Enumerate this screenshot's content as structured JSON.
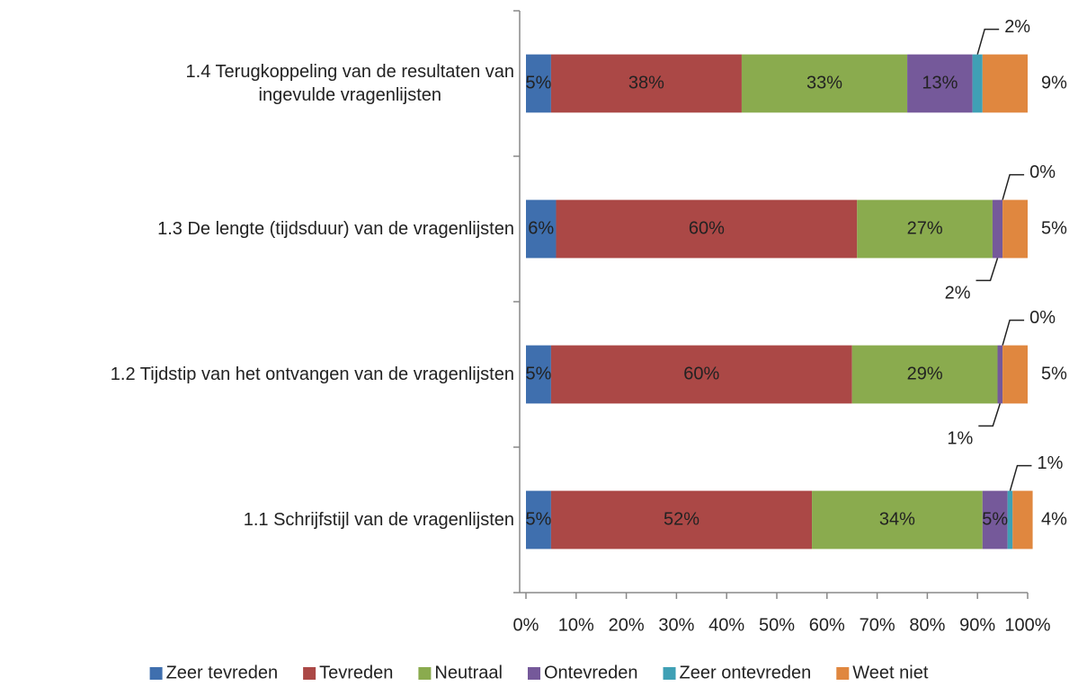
{
  "chart_data": {
    "type": "stacked_bar_horizontal",
    "categories": [
      "1.1 Schrijfstijl van de vragenlijsten",
      "1.2 Tijdstip van het ontvangen van de vragenlijsten",
      "1.3 De lengte (tijdsduur) van de vragenlijsten",
      "1.4 Terugkoppeling van de resultaten van\ningevulde vragenlijsten"
    ],
    "series": [
      {
        "name": "Zeer tevreden",
        "color": "#3f6fae",
        "values": [
          5,
          5,
          6,
          5
        ],
        "value_labels": [
          "5%",
          "5%",
          "6%",
          "5%"
        ]
      },
      {
        "name": "Tevreden",
        "color": "#ab4846",
        "values": [
          52,
          60,
          60,
          38
        ],
        "value_labels": [
          "52%",
          "60%",
          "60%",
          "38%"
        ]
      },
      {
        "name": "Neutraal",
        "color": "#8aab4e",
        "values": [
          34,
          29,
          27,
          33
        ],
        "value_labels": [
          "34%",
          "29%",
          "27%",
          "33%"
        ]
      },
      {
        "name": "Ontevreden",
        "color": "#75599a",
        "values": [
          5,
          1,
          2,
          13
        ],
        "value_labels": [
          "5%",
          "1%",
          "2%",
          "13%"
        ]
      },
      {
        "name": "Zeer ontevreden",
        "color": "#3fa0b5",
        "values": [
          1,
          0,
          0,
          2
        ],
        "value_labels": [
          "1%",
          "0%",
          "0%",
          "2%"
        ]
      },
      {
        "name": "Weet niet",
        "color": "#e0873f",
        "values": [
          4,
          5,
          5,
          9
        ],
        "value_labels": [
          "4%",
          "5%",
          "5%",
          "9%"
        ]
      }
    ],
    "xlim": [
      0,
      100
    ],
    "xticks": [
      {
        "value": 0,
        "label": "0%"
      },
      {
        "value": 10,
        "label": "10%"
      },
      {
        "value": 20,
        "label": "20%"
      },
      {
        "value": 30,
        "label": "30%"
      },
      {
        "value": 40,
        "label": "40%"
      },
      {
        "value": 50,
        "label": "50%"
      },
      {
        "value": 60,
        "label": "60%"
      },
      {
        "value": 70,
        "label": "70%"
      },
      {
        "value": 80,
        "label": "80%"
      },
      {
        "value": 90,
        "label": "90%"
      },
      {
        "value": 100,
        "label": "100%"
      }
    ],
    "legend": "bottom"
  }
}
